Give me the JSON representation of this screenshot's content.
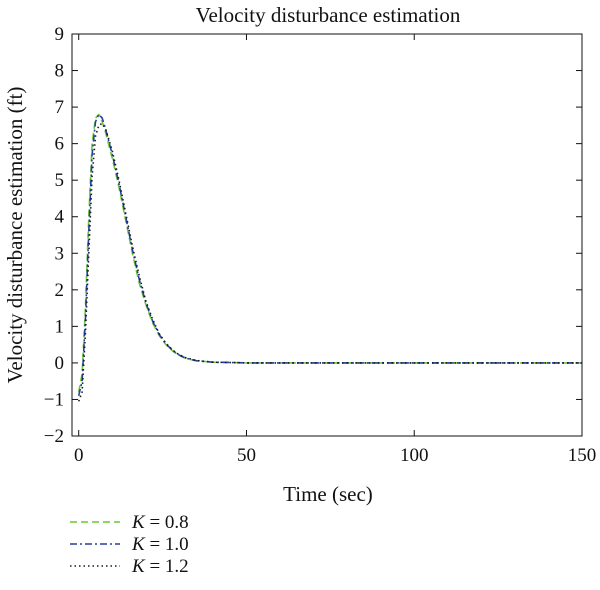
{
  "chart_data": {
    "type": "line",
    "title": "Velocity disturbance estimation",
    "xlabel": "Time (sec)",
    "ylabel": "Velocity disturbance estimation (ft)",
    "xlim": [
      -2,
      150
    ],
    "ylim": [
      -2,
      9
    ],
    "xticks": [
      0,
      50,
      100,
      150
    ],
    "yticks": [
      -2,
      -1,
      0,
      1,
      2,
      3,
      4,
      5,
      6,
      7,
      8,
      9
    ],
    "grid": false,
    "legend_position": "bottom-left",
    "series": [
      {
        "name": "K = 0.8",
        "legend_var": "K",
        "legend_value": "= 0.8",
        "color": "#66cc33",
        "style": "dashed",
        "x": [
          0,
          1,
          2,
          3,
          4,
          5,
          6,
          7,
          8,
          10,
          12,
          14,
          16,
          18,
          20,
          22,
          24,
          26,
          28,
          30,
          32,
          35,
          40,
          45,
          50,
          60,
          80,
          100,
          120,
          150
        ],
        "y": [
          -0.8,
          -0.3,
          1.5,
          4.0,
          6.0,
          6.7,
          6.8,
          6.6,
          6.3,
          5.6,
          4.8,
          3.9,
          3.0,
          2.2,
          1.6,
          1.1,
          0.75,
          0.5,
          0.32,
          0.2,
          0.12,
          0.06,
          0.02,
          0.01,
          0.0,
          0.0,
          0.0,
          0.0,
          0.0,
          0.0
        ]
      },
      {
        "name": "K = 1.0",
        "legend_var": "K",
        "legend_value": "= 1.0",
        "color": "#2a3f9c",
        "style": "dashdot",
        "x": [
          0,
          1,
          2,
          3,
          4,
          5,
          6,
          7,
          8,
          10,
          12,
          14,
          16,
          18,
          20,
          22,
          24,
          26,
          28,
          30,
          32,
          35,
          40,
          45,
          50,
          60,
          80,
          100,
          120,
          150
        ],
        "y": [
          -0.9,
          -0.5,
          1.2,
          3.6,
          5.7,
          6.6,
          6.8,
          6.7,
          6.4,
          5.7,
          4.9,
          4.0,
          3.1,
          2.3,
          1.65,
          1.15,
          0.78,
          0.52,
          0.34,
          0.21,
          0.13,
          0.06,
          0.02,
          0.01,
          0.0,
          0.0,
          0.0,
          0.0,
          0.0,
          0.0
        ]
      },
      {
        "name": "K = 1.2",
        "legend_var": "K",
        "legend_value": "= 1.2",
        "color": "#1a1a1a",
        "style": "dotted",
        "x": [
          0,
          1,
          2,
          3,
          4,
          5,
          6,
          7,
          8,
          10,
          12,
          14,
          16,
          18,
          20,
          22,
          24,
          26,
          28,
          30,
          32,
          35,
          40,
          45,
          50,
          60,
          80,
          100,
          120,
          150
        ],
        "y": [
          -1.05,
          -0.8,
          0.8,
          3.0,
          5.1,
          6.2,
          6.5,
          6.55,
          6.4,
          5.8,
          5.0,
          4.1,
          3.2,
          2.4,
          1.7,
          1.2,
          0.8,
          0.54,
          0.35,
          0.22,
          0.14,
          0.07,
          0.02,
          0.01,
          0.0,
          0.0,
          0.0,
          0.0,
          0.0,
          0.0
        ]
      }
    ]
  }
}
